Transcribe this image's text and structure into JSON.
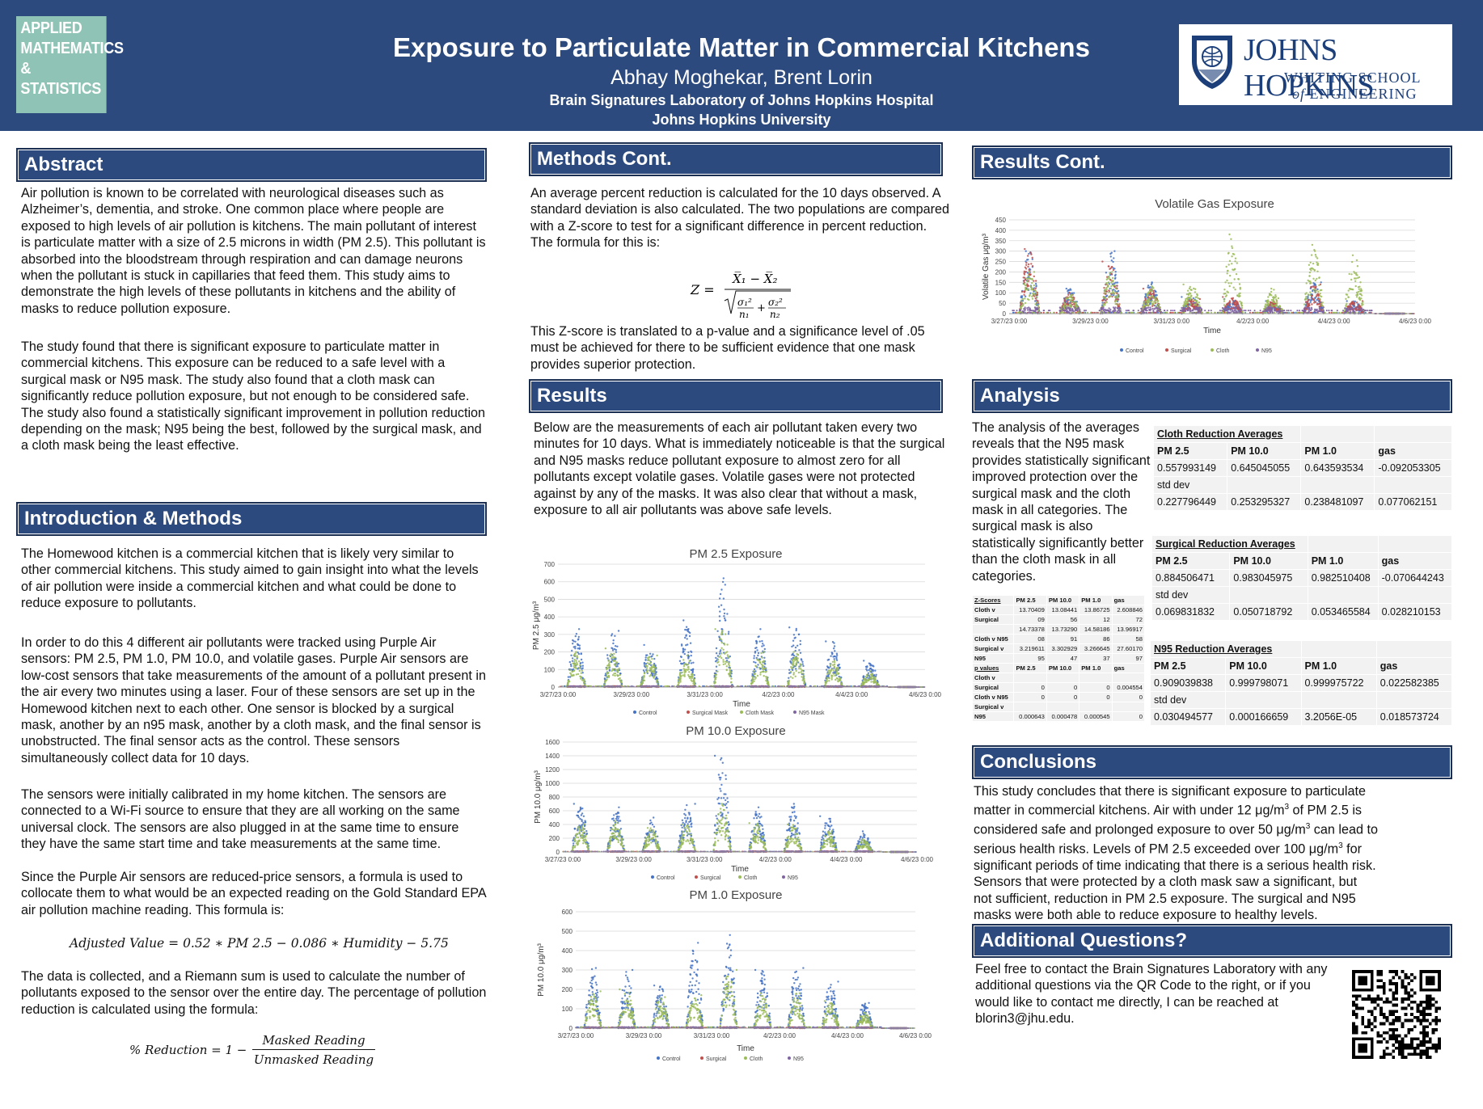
{
  "header": {
    "logo_lines": [
      "APPLIED",
      "MATHEMATICS",
      "& STATISTICS"
    ],
    "title": "Exposure to Particulate Matter in Commercial Kitchens",
    "authors": "Abhay Moghekar, Brent Lorin",
    "affiliation_1": "Brain Signatures Laboratory of Johns Hopkins Hospital",
    "affiliation_2": "Johns Hopkins University",
    "jhu_logo": {
      "name": "JOHNS HOPKINS",
      "school": "WHITING SCHOOL",
      "of": "of",
      "eng": "ENGINEERING"
    }
  },
  "abstract": {
    "heading": "Abstract",
    "p1": "Air pollution is known to be correlated with neurological diseases such as Alzheimer’s, dementia, and stroke. One common place where people are exposed to high levels of air pollution is kitchens. The main pollutant of interest is particulate matter with a size of 2.5 microns in width (PM 2.5). This pollutant is absorbed into the bloodstream through respiration and can damage neurons when the pollutant is stuck in capillaries that feed them. This study aims to demonstrate the high levels of these pollutants in kitchens and the ability of masks to reduce pollution exposure.",
    "p2": "The study found that there is significant exposure to particulate matter in commercial kitchens. This exposure can be reduced to a safe level with a surgical mask or N95 mask. The study also found that a cloth mask can significantly reduce pollution exposure, but not enough to be considered safe. The study also found a statistically significant improvement in pollution reduction depending on the mask; N95 being the best, followed by the surgical mask, and a cloth mask being the least effective."
  },
  "intro": {
    "heading": "Introduction & Methods",
    "p1": "The Homewood kitchen is a commercial kitchen that is likely very similar to other commercial kitchens. This study aimed to gain insight into what the levels of air pollution were inside a commercial kitchen and what could be done to reduce exposure to pollutants.",
    "p2": "In order to do this 4 different air pollutants were tracked using Purple Air sensors: PM 2.5, PM 1.0, PM 10.0, and volatile gases. Purple Air sensors are low-cost sensors that take measurements of the amount of a pollutant present in the air every two minutes using a laser. Four of these sensors are set up in the Homewood kitchen next to each other. One sensor is blocked by a surgical mask, another by an n95 mask, another by a cloth mask, and the final sensor is unobstructed. The final sensor acts as the control. These sensors simultaneously collect data for 10 days.",
    "p3": "The sensors were initially calibrated in my home kitchen. The sensors are connected to a Wi-Fi source to ensure that they are all working on the same universal clock. The sensors are also plugged in at the same time to ensure they have the same start time and take measurements at the same time.",
    "p4": "Since the Purple Air sensors are reduced-price sensors, a formula is used to collocate them to what would be an expected reading on the Gold Standard EPA air pollution machine reading. This formula is:",
    "eq1": "Adjusted Value = 0.52 ∗  PM 2.5 −  0.086 ∗ Humidity − 5.75",
    "p5": "The data is collected, and a Riemann sum is used to calculate the number of pollutants exposed to the sensor over the entire day. The percentage of pollution reduction is calculated using the formula:",
    "eq2_lhs": "% Reduction = 1 −",
    "eq2_num": "Masked Reading",
    "eq2_den": "Unmasked Reading"
  },
  "methods_cont": {
    "heading": "Methods Cont.",
    "p1": "An average percent reduction is calculated for the 10 days observed. A standard deviation is also calculated. The two populations are compared with a Z-score to test for a significant difference in percent reduction. The formula for this is:",
    "p2": "This Z-score is translated to a p-value and a significance level of .05 must be achieved for there to be sufficient evidence that one mask provides superior protection."
  },
  "results": {
    "heading": "Results",
    "p1": "Below are the measurements of each air pollutant taken every two minutes for 10 days. What is immediately noticeable is that the surgical and N95 masks reduce pollutant exposure to almost zero for all pollutants except volatile gases. Volatile gases were not protected against by any of the masks. It was also clear that without a mask, exposure to all air pollutants was above safe levels."
  },
  "charts": [
    {
      "title": "PM 2.5 Exposure",
      "ylabel": "PM 2.5 μg/m³",
      "xlabel": "Time",
      "legend": [
        "Control",
        "Surgical Mask",
        "Cloth Mask",
        "N95 Mask"
      ]
    },
    {
      "title": "PM 10.0 Exposure",
      "ylabel": "PM 10.0 μg/m³",
      "xlabel": "Time",
      "legend": [
        "Control",
        "Surgical",
        "Cloth",
        "N95"
      ]
    },
    {
      "title": "PM 1.0 Exposure",
      "ylabel": "PM 10.0 μg/m³",
      "xlabel": "Time",
      "legend": [
        "Control",
        "Surgical",
        "Cloth",
        "N95"
      ]
    },
    {
      "title": "Volatile Gas Exposure",
      "ylabel": "Volatile Gas μg/m³",
      "xlabel": "Time",
      "legend": [
        "Control",
        "Surgical",
        "Cloth",
        "N95"
      ]
    }
  ],
  "chart_data": [
    {
      "type": "scatter",
      "title": "PM 2.5 Exposure",
      "xlabel": "Time",
      "ylabel": "PM 2.5 μg/m³",
      "x_ticks": [
        "3/27/23 0:00",
        "3/29/23 0:00",
        "3/31/23 0:00",
        "4/2/23 0:00",
        "4/4/23 0:00",
        "4/6/23 0:00"
      ],
      "ylim": [
        0,
        700
      ],
      "y_ticks": [
        0,
        100,
        200,
        300,
        400,
        500,
        600,
        700
      ],
      "series": [
        {
          "name": "Control",
          "color": "#4472c4",
          "daily_peaks": [
            330,
            320,
            240,
            380,
            620,
            330,
            340,
            260,
            150,
            0
          ]
        },
        {
          "name": "Surgical Mask",
          "color": "#c0504d",
          "daily_peaks": [
            5,
            5,
            5,
            5,
            5,
            5,
            5,
            5,
            5,
            0
          ]
        },
        {
          "name": "Cloth Mask",
          "color": "#9bbb59",
          "daily_peaks": [
            200,
            220,
            180,
            180,
            330,
            200,
            200,
            150,
            90,
            0
          ]
        },
        {
          "name": "N95 Mask",
          "color": "#8064a2",
          "daily_peaks": [
            5,
            5,
            5,
            5,
            5,
            5,
            5,
            5,
            5,
            0
          ]
        }
      ],
      "grid": true,
      "legend_position": "bottom"
    },
    {
      "type": "scatter",
      "title": "PM 10.0 Exposure",
      "xlabel": "Time",
      "ylabel": "PM 10.0 μg/m³",
      "x_ticks": [
        "3/27/23 0:00",
        "3/29/23 0:00",
        "3/31/23 0:00",
        "4/2/23 0:00",
        "4/4/23 0:00",
        "4/6/23 0:00"
      ],
      "ylim": [
        0,
        1600
      ],
      "y_ticks": [
        0,
        200,
        400,
        600,
        800,
        1000,
        1200,
        1400,
        1600
      ],
      "series": [
        {
          "name": "Control",
          "color": "#4472c4",
          "daily_peaks": [
            700,
            650,
            500,
            700,
            1400,
            650,
            700,
            520,
            300,
            0
          ]
        },
        {
          "name": "Surgical",
          "color": "#c0504d",
          "daily_peaks": [
            10,
            10,
            10,
            10,
            10,
            10,
            10,
            10,
            10,
            0
          ]
        },
        {
          "name": "Cloth",
          "color": "#9bbb59",
          "daily_peaks": [
            400,
            450,
            350,
            400,
            700,
            420,
            400,
            300,
            180,
            0
          ]
        },
        {
          "name": "N95",
          "color": "#8064a2",
          "daily_peaks": [
            10,
            10,
            10,
            10,
            10,
            10,
            10,
            10,
            10,
            0
          ]
        }
      ],
      "grid": true,
      "legend_position": "bottom"
    },
    {
      "type": "scatter",
      "title": "PM 1.0 Exposure",
      "xlabel": "Time",
      "ylabel": "PM 10.0 μg/m³",
      "x_ticks": [
        "3/27/23 0:00",
        "3/29/23 0:00",
        "3/31/23 0:00",
        "4/2/23 0:00",
        "4/4/23 0:00",
        "4/6/23 0:00"
      ],
      "ylim": [
        0,
        600
      ],
      "y_ticks": [
        0,
        100,
        200,
        300,
        400,
        500,
        600
      ],
      "series": [
        {
          "name": "Control",
          "color": "#4472c4",
          "daily_peaks": [
            310,
            300,
            220,
            440,
            480,
            300,
            310,
            240,
            130,
            0
          ]
        },
        {
          "name": "Surgical",
          "color": "#c0504d",
          "daily_peaks": [
            5,
            5,
            5,
            5,
            5,
            5,
            5,
            5,
            5,
            0
          ]
        },
        {
          "name": "Cloth",
          "color": "#9bbb59",
          "daily_peaks": [
            190,
            200,
            160,
            170,
            300,
            180,
            180,
            140,
            80,
            0
          ]
        },
        {
          "name": "N95",
          "color": "#8064a2",
          "daily_peaks": [
            5,
            5,
            5,
            5,
            5,
            5,
            5,
            5,
            5,
            0
          ]
        }
      ],
      "grid": true,
      "legend_position": "bottom"
    },
    {
      "type": "scatter",
      "title": "Volatile Gas Exposure",
      "xlabel": "Time",
      "ylabel": "Volatile Gas μg/m³",
      "x_ticks": [
        "3/27/23 0:00",
        "3/29/23 0:00",
        "3/31/23 0:00",
        "4/2/23 0:00",
        "4/4/23 0:00",
        "4/6/23 0:00"
      ],
      "ylim": [
        0,
        450
      ],
      "y_ticks": [
        0,
        50,
        100,
        150,
        200,
        250,
        300,
        350,
        400,
        450
      ],
      "series": [
        {
          "name": "Control",
          "color": "#4472c4",
          "daily_peaks": [
            300,
            120,
            300,
            150,
            80,
            70,
            60,
            150,
            60,
            0
          ]
        },
        {
          "name": "Surgical",
          "color": "#c0504d",
          "daily_peaks": [
            310,
            100,
            250,
            120,
            70,
            80,
            60,
            140,
            60,
            0
          ]
        },
        {
          "name": "Cloth",
          "color": "#9bbb59",
          "daily_peaks": [
            200,
            90,
            200,
            130,
            140,
            380,
            120,
            330,
            280,
            0
          ]
        },
        {
          "name": "N95",
          "color": "#8064a2",
          "daily_peaks": [
            30,
            30,
            30,
            30,
            30,
            30,
            30,
            30,
            30,
            0
          ]
        }
      ],
      "grid": true,
      "legend_position": "bottom"
    }
  ],
  "results_cont": {
    "heading": "Results Cont."
  },
  "analysis": {
    "heading": "Analysis",
    "p1": "The analysis of the averages reveals that the N95 mask provides statistically significant improved protection over the surgical mask and the cloth mask in all categories. The surgical mask is also statistically significantly better than the cloth mask in all categories.",
    "cloth": {
      "caption": "Cloth Reduction Averages",
      "headers": [
        "PM 2.5",
        "PM 10.0",
        "PM 1.0",
        "gas"
      ],
      "avg": [
        "0.557993149",
        "0.645045055",
        "0.643593534",
        "-0.092053305"
      ],
      "std_label": "std dev",
      "std": [
        "0.227796449",
        "0.253295327",
        "0.238481097",
        "0.077062151"
      ]
    },
    "surgical": {
      "caption": "Surgical Reduction Averages",
      "headers": [
        "PM 2.5",
        "PM 10.0",
        "PM 1.0",
        "gas"
      ],
      "avg": [
        "0.884506471",
        "0.983045975",
        "0.982510408",
        "-0.070644243"
      ],
      "std_label": "std dev",
      "std": [
        "0.069831832",
        "0.050718792",
        "0.053465584",
        "0.028210153"
      ]
    },
    "n95": {
      "caption": "N95 Reduction Averages",
      "headers": [
        "PM 2.5",
        "PM 10.0",
        "PM 1.0",
        "gas"
      ],
      "avg": [
        "0.909039838",
        "0.999798071",
        "0.999975722",
        "0.022582385"
      ],
      "std_label": "std dev",
      "std": [
        "0.030494577",
        "0.000166659",
        "3.2056E-05",
        "0.018573724"
      ]
    },
    "zscores": {
      "header": [
        "Z-Scores",
        "PM 2.5",
        "PM 10.0",
        "PM 1.0",
        "gas"
      ],
      "rows": [
        [
          "Cloth v",
          "13.70409",
          "13.08441",
          "13.86725",
          "2.608846"
        ],
        [
          "Surgical",
          "09",
          "56",
          "12",
          "72"
        ],
        [
          "",
          "14.73378",
          "13.73290",
          "14.58186",
          "13.96917"
        ],
        [
          "Cloth v N95",
          "08",
          "91",
          "86",
          "58"
        ],
        [
          "Surgical v",
          "3.219611",
          "3.302929",
          "3.266645",
          "27.60170"
        ],
        [
          "N95",
          "95",
          "47",
          "37",
          "97"
        ]
      ],
      "p_header": [
        "p values",
        "PM 2.5",
        "PM 10.0",
        "PM 1.0",
        "gas"
      ],
      "p_rows": [
        [
          "Cloth v",
          "",
          "",
          "",
          ""
        ],
        [
          "Surgical",
          "0",
          "0",
          "0",
          "0.004554"
        ],
        [
          "Cloth v N95",
          "0",
          "0",
          "0",
          "0"
        ],
        [
          "Surgical v",
          "",
          "",
          "",
          ""
        ],
        [
          "N95",
          "0.000643",
          "0.000478",
          "0.000545",
          "0"
        ]
      ]
    }
  },
  "conclusions": {
    "heading": "Conclusions",
    "p1_a": "This study concludes that there is significant exposure to particulate matter in commercial kitchens. Air with under 12 μg/m",
    "p1_b": " of PM 2.5 is considered safe and prolonged exposure to over 50 μg/m",
    "p1_c": " can lead to serious health risks. Levels of PM 2.5 exceeded over 100 μg/m",
    "p1_d": " for significant periods of time indicating that there is a serious health risk. Sensors that were protected by a cloth mask saw a significant, but not sufficient, reduction in PM 2.5 exposure. The surgical and N95 masks were both able to reduce exposure to healthy levels.",
    "sup": "3"
  },
  "questions": {
    "heading": "Additional Questions?",
    "p1": "Feel free to contact the Brain Signatures Laboratory with any additional questions via the QR Code to the right, or if you would like to contact me directly, I can be reached at blorin3@jhu.edu."
  }
}
